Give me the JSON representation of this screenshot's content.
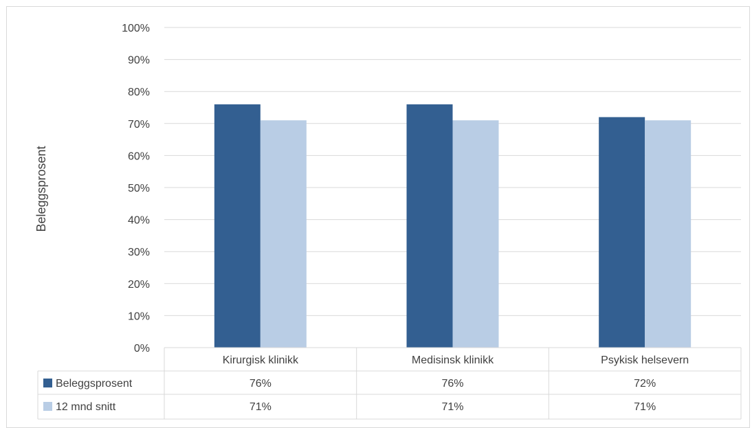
{
  "chart_data": {
    "type": "bar",
    "ylabel": "Beleggsprosent",
    "ylim": [
      0,
      100
    ],
    "yticks": [
      "0%",
      "10%",
      "20%",
      "30%",
      "40%",
      "50%",
      "60%",
      "70%",
      "80%",
      "90%",
      "100%"
    ],
    "grid": true,
    "legend": "data-table",
    "categories": [
      "Kirurgisk klinikk",
      "Medisinsk klinikk",
      "Psykisk helsevern"
    ],
    "series": [
      {
        "name": "Beleggsprosent",
        "color": "#335f91",
        "values": [
          76,
          76,
          72
        ],
        "labels": [
          "76%",
          "76%",
          "72%"
        ]
      },
      {
        "name": "12 mnd snitt",
        "color": "#b9cde5",
        "values": [
          71,
          71,
          71
        ],
        "labels": [
          "71%",
          "71%",
          "71%"
        ]
      }
    ]
  }
}
